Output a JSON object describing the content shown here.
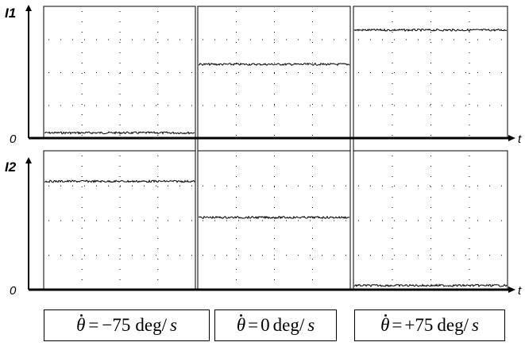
{
  "colors": {
    "trace": "#000000",
    "frame": "#000000",
    "grid": "#000000",
    "background": "#ffffff"
  },
  "chart_data": {
    "type": "line",
    "panels": [
      {
        "caption": {
          "symbol": "θ",
          "equals": "=",
          "value": "−75",
          "unit": "deg/",
          "unit_s": "s"
        }
      },
      {
        "caption": {
          "symbol": "θ",
          "equals": "=",
          "value": "0",
          "unit": "deg/",
          "unit_s": "s"
        }
      },
      {
        "caption": {
          "symbol": "θ",
          "equals": "=",
          "value": "+75",
          "unit": "deg/",
          "unit_s": "s"
        }
      }
    ],
    "traces": [
      {
        "name": "I1",
        "axis_label": "I1",
        "zero_label": "0",
        "time_label": "t",
        "ylim": [
          0,
          1
        ],
        "levels": [
          0.04,
          0.56,
          0.82
        ]
      },
      {
        "name": "I2",
        "axis_label": "I2",
        "zero_label": "0",
        "time_label": "t",
        "ylim": [
          0,
          1
        ],
        "levels": [
          0.78,
          0.52,
          0.03
        ]
      }
    ],
    "grid": true,
    "xlabel": "t",
    "ylabel": ""
  }
}
